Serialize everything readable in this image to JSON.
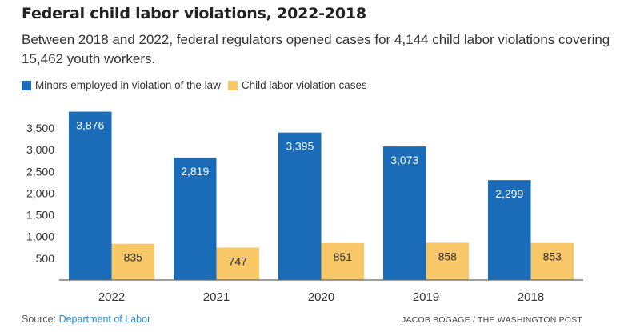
{
  "title": "Federal child labor violations, 2022-2018",
  "subtitle": "Between 2018 and 2022, federal regulators opened cases for 4,144 child labor violations covering 15,462 youth workers.",
  "footer": {
    "source_prefix": "Source:",
    "source_link": "Department of Labor",
    "credit": "JACOB BOGAGE / THE WASHINGTON POST"
  },
  "chart_data": {
    "type": "bar",
    "categories": [
      "2022",
      "2021",
      "2020",
      "2019",
      "2018"
    ],
    "series": [
      {
        "name": "Minors employed in violation of the law",
        "color": "#1a6bb8",
        "values": [
          3876,
          2819,
          3395,
          3073,
          2299
        ],
        "labels": [
          "3,876",
          "2,819",
          "3,395",
          "3,073",
          "2,299"
        ],
        "label_color": "#ffffff"
      },
      {
        "name": "Child labor violation cases",
        "color": "#f8c868",
        "values": [
          835,
          747,
          851,
          858,
          853
        ],
        "labels": [
          "835",
          "747",
          "851",
          "858",
          "853"
        ],
        "label_color": "#333333"
      }
    ],
    "yticks": [
      500,
      1000,
      1500,
      2000,
      2500,
      3000,
      3500
    ],
    "ytick_labels": [
      "500",
      "1,000",
      "1,500",
      "2,000",
      "2,500",
      "3,000",
      "3,500"
    ],
    "ylim": [
      0,
      4000
    ],
    "grid": false,
    "legend": "top-left"
  }
}
